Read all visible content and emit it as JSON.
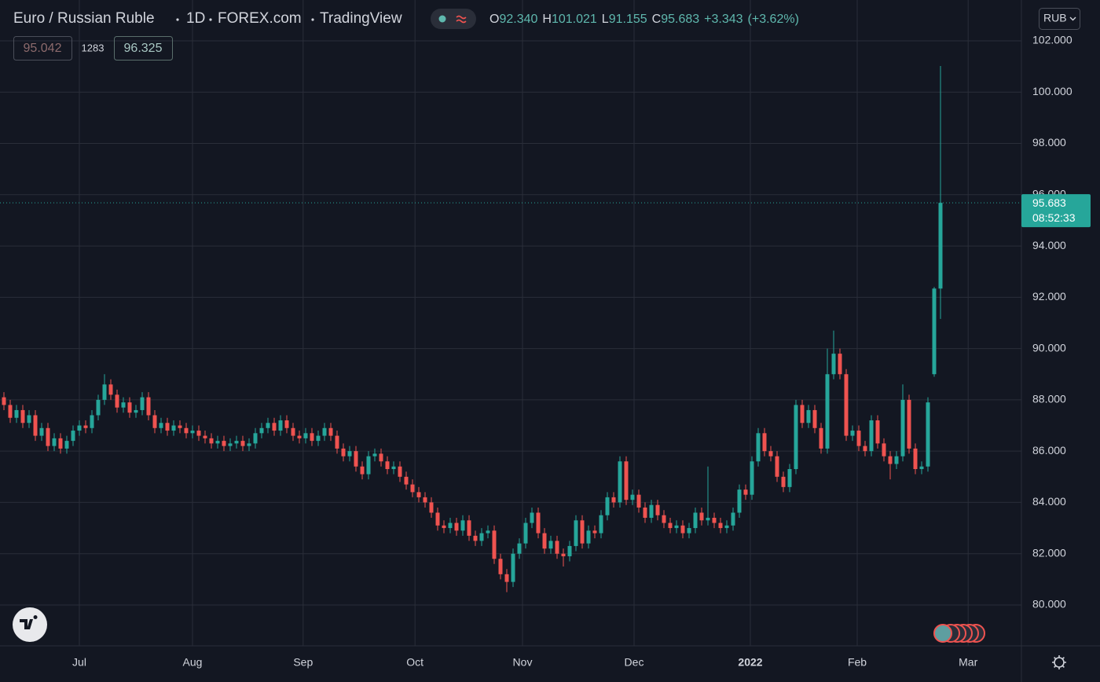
{
  "header": {
    "symbol": "Euro / Russian Ruble",
    "interval": "1D",
    "exchange": "FOREX.com",
    "source": "TradingView",
    "ohlc": {
      "o_label": "O",
      "open": "92.340",
      "h_label": "H",
      "high": "101.021",
      "l_label": "L",
      "low": "91.155",
      "c_label": "C",
      "close": "95.683",
      "change": "+3.343",
      "change_pct": "(+3.62%)"
    },
    "quote": {
      "bid": "95.042",
      "spread": "1283",
      "ask": "96.325"
    },
    "currency": "RUB",
    "countdown": "08:52:33"
  },
  "chart_data": {
    "type": "candlestick",
    "up_color": "#26a69a",
    "down_color": "#ef5350",
    "grid": true,
    "xlim": [
      -0.625,
      161.875
    ],
    "xticks": [
      {
        "value": 12,
        "label": "Jul"
      },
      {
        "value": 30,
        "label": "Aug"
      },
      {
        "value": 47.6,
        "label": "Sep"
      },
      {
        "value": 65.4,
        "label": "Oct"
      },
      {
        "value": 82.5,
        "label": "Nov"
      },
      {
        "value": 100.25,
        "label": "Dec"
      },
      {
        "value": 118.75,
        "label": "2022"
      },
      {
        "value": 135.75,
        "label": "Feb"
      },
      {
        "value": 153.4,
        "label": "Mar"
      }
    ],
    "ylim": [
      78.406,
      103.593
    ],
    "yticks": [
      {
        "value": 80,
        "label": "80.000"
      },
      {
        "value": 82,
        "label": "82.000"
      },
      {
        "value": 84,
        "label": "84.000"
      },
      {
        "value": 86,
        "label": "86.000"
      },
      {
        "value": 88,
        "label": "88.000"
      },
      {
        "value": 90,
        "label": "90.000"
      },
      {
        "value": 92,
        "label": "92.000"
      },
      {
        "value": 94,
        "label": "94.000"
      },
      {
        "value": 96,
        "label": "96.000"
      },
      {
        "value": 98,
        "label": "98.000"
      },
      {
        "value": 100,
        "label": "100.000"
      },
      {
        "value": 102,
        "label": "102.000"
      }
    ],
    "open": [
      88.1,
      87.8,
      87.3,
      87.6,
      87.1,
      87.4,
      86.6,
      86.9,
      86.2,
      86.5,
      86.1,
      86.4,
      86.8,
      87.0,
      86.9,
      87.4,
      88.0,
      88.6,
      88.2,
      87.7,
      87.9,
      87.5,
      87.6,
      88.1,
      87.4,
      86.9,
      87.1,
      86.8,
      87.0,
      86.9,
      86.7,
      86.8,
      86.6,
      86.5,
      86.3,
      86.4,
      86.2,
      86.3,
      86.4,
      86.2,
      86.3,
      86.7,
      86.9,
      87.1,
      86.8,
      87.2,
      86.9,
      86.6,
      86.5,
      86.7,
      86.4,
      86.6,
      86.9,
      86.6,
      86.1,
      85.8,
      86.0,
      85.4,
      85.1,
      85.8,
      85.9,
      85.6,
      85.3,
      85.4,
      85.0,
      84.7,
      84.4,
      84.2,
      84.0,
      83.6,
      83.1,
      83.0,
      83.2,
      82.9,
      83.3,
      82.7,
      82.5,
      82.8,
      82.9,
      81.8,
      81.2,
      80.9,
      82.0,
      82.4,
      83.2,
      83.6,
      82.8,
      82.2,
      82.5,
      82.0,
      81.9,
      82.3,
      83.3,
      82.4,
      82.9,
      82.8,
      83.5,
      84.2,
      84.0,
      85.6,
      84.1,
      84.3,
      83.8,
      83.4,
      83.9,
      83.5,
      83.2,
      83.0,
      83.1,
      82.8,
      83.0,
      83.6,
      83.3,
      83.4,
      83.2,
      83.0,
      83.1,
      83.6,
      84.5,
      84.3,
      85.6,
      86.7,
      86.0,
      85.8,
      85.0,
      84.6,
      85.3,
      87.8,
      87.1,
      87.6,
      86.9,
      86.1,
      89.0,
      89.8,
      89.0,
      86.6,
      86.8,
      86.2,
      86.0,
      87.2,
      86.3,
      85.8,
      85.5,
      85.8,
      88.0,
      86.1,
      85.3,
      85.4,
      89.0,
      92.34
    ],
    "high": [
      88.3,
      88.0,
      87.8,
      87.8,
      87.6,
      87.6,
      87.1,
      87.1,
      86.7,
      86.7,
      86.6,
      87.0,
      87.2,
      87.2,
      87.6,
      88.2,
      89.0,
      88.8,
      88.4,
      88.1,
      88.1,
      87.8,
      88.3,
      88.3,
      87.6,
      87.3,
      87.3,
      87.2,
      87.2,
      87.1,
      87.0,
      87.0,
      86.8,
      86.7,
      86.6,
      86.6,
      86.5,
      86.6,
      86.6,
      86.5,
      86.9,
      87.1,
      87.3,
      87.3,
      87.4,
      87.4,
      87.1,
      86.8,
      86.9,
      86.9,
      86.8,
      87.1,
      87.1,
      86.8,
      86.3,
      86.2,
      86.2,
      85.6,
      86.0,
      86.1,
      86.1,
      85.8,
      85.6,
      85.6,
      85.2,
      84.9,
      84.6,
      84.4,
      84.2,
      83.8,
      83.3,
      83.4,
      83.4,
      83.5,
      83.5,
      82.9,
      83.0,
      83.1,
      83.1,
      82.0,
      81.4,
      82.2,
      82.6,
      83.4,
      83.8,
      83.8,
      83.0,
      82.7,
      82.7,
      82.2,
      82.5,
      83.5,
      83.5,
      83.1,
      83.1,
      83.7,
      84.4,
      84.4,
      85.8,
      85.8,
      84.5,
      84.5,
      84.0,
      84.1,
      84.1,
      83.7,
      83.4,
      83.3,
      83.3,
      83.2,
      83.8,
      83.8,
      85.4,
      83.6,
      83.4,
      83.3,
      83.8,
      84.7,
      84.7,
      85.8,
      86.9,
      86.9,
      86.2,
      86.0,
      85.2,
      85.5,
      88.0,
      88.0,
      87.8,
      87.8,
      87.1,
      90.0,
      90.7,
      90.0,
      89.2,
      87.0,
      87.0,
      86.4,
      87.4,
      87.4,
      86.5,
      86.0,
      86.0,
      88.6,
      88.2,
      86.3,
      85.6,
      88.1,
      92.4,
      101.021
    ],
    "low": [
      87.6,
      87.1,
      87.1,
      86.9,
      86.9,
      86.4,
      86.4,
      86.0,
      86.0,
      85.9,
      85.9,
      86.2,
      86.6,
      86.7,
      86.7,
      87.2,
      87.8,
      88.0,
      87.5,
      87.5,
      87.3,
      87.3,
      87.4,
      87.2,
      86.7,
      86.7,
      86.6,
      86.6,
      86.7,
      86.5,
      86.5,
      86.4,
      86.3,
      86.1,
      86.1,
      86.0,
      86.0,
      86.1,
      86.0,
      86.0,
      86.1,
      86.5,
      86.7,
      86.6,
      86.6,
      86.7,
      86.4,
      86.3,
      86.3,
      86.2,
      86.2,
      86.4,
      86.4,
      85.9,
      85.6,
      85.6,
      85.2,
      84.9,
      84.9,
      85.6,
      85.4,
      85.1,
      85.1,
      84.8,
      84.5,
      84.2,
      84.0,
      83.8,
      83.4,
      82.9,
      82.8,
      82.8,
      82.7,
      82.7,
      82.5,
      82.3,
      82.3,
      82.6,
      81.6,
      81.0,
      80.5,
      80.7,
      81.8,
      82.2,
      83.0,
      82.6,
      82.0,
      82.0,
      81.8,
      81.5,
      81.7,
      82.1,
      82.2,
      82.2,
      82.6,
      82.6,
      83.3,
      83.8,
      83.8,
      83.9,
      83.9,
      83.6,
      83.2,
      83.2,
      83.3,
      83.0,
      82.8,
      82.8,
      82.6,
      82.6,
      82.8,
      83.1,
      83.1,
      83.0,
      82.8,
      82.8,
      82.9,
      83.4,
      84.1,
      84.1,
      85.4,
      85.8,
      85.6,
      84.8,
      84.4,
      84.4,
      85.1,
      86.9,
      86.9,
      86.7,
      85.9,
      85.9,
      88.8,
      88.8,
      86.4,
      86.4,
      86.0,
      85.8,
      85.8,
      86.1,
      85.6,
      84.9,
      85.3,
      85.6,
      85.9,
      85.1,
      85.1,
      85.2,
      88.9,
      91.155
    ],
    "close": [
      87.8,
      87.3,
      87.6,
      87.1,
      87.4,
      86.6,
      86.9,
      86.2,
      86.5,
      86.1,
      86.4,
      86.8,
      87.0,
      86.9,
      87.4,
      88.0,
      88.6,
      88.2,
      87.7,
      87.9,
      87.5,
      87.6,
      88.1,
      87.4,
      86.9,
      87.1,
      86.8,
      87.0,
      86.9,
      86.7,
      86.8,
      86.6,
      86.5,
      86.3,
      86.4,
      86.2,
      86.3,
      86.4,
      86.2,
      86.3,
      86.7,
      86.9,
      87.1,
      86.8,
      87.2,
      86.9,
      86.6,
      86.5,
      86.7,
      86.4,
      86.6,
      86.9,
      86.6,
      86.1,
      85.8,
      86.0,
      85.4,
      85.1,
      85.8,
      85.9,
      85.6,
      85.3,
      85.4,
      85.0,
      84.7,
      84.4,
      84.2,
      84.0,
      83.6,
      83.1,
      83.0,
      83.2,
      82.9,
      83.3,
      82.7,
      82.5,
      82.8,
      82.9,
      81.8,
      81.2,
      80.9,
      82.0,
      82.4,
      83.2,
      83.6,
      82.8,
      82.2,
      82.5,
      82.0,
      81.9,
      82.3,
      83.3,
      82.4,
      82.9,
      82.8,
      83.5,
      84.2,
      84.0,
      85.6,
      84.1,
      84.3,
      83.8,
      83.4,
      83.9,
      83.5,
      83.2,
      83.0,
      83.1,
      82.8,
      83.0,
      83.6,
      83.3,
      83.4,
      83.2,
      83.0,
      83.1,
      83.6,
      84.5,
      84.3,
      85.6,
      86.7,
      86.0,
      85.8,
      85.0,
      84.6,
      85.3,
      87.8,
      87.1,
      87.6,
      86.9,
      86.1,
      89.0,
      89.8,
      89.0,
      86.6,
      86.8,
      86.2,
      86.0,
      87.2,
      86.3,
      85.8,
      85.5,
      85.8,
      88.0,
      86.1,
      85.3,
      85.4,
      87.9,
      92.34,
      95.683
    ]
  }
}
